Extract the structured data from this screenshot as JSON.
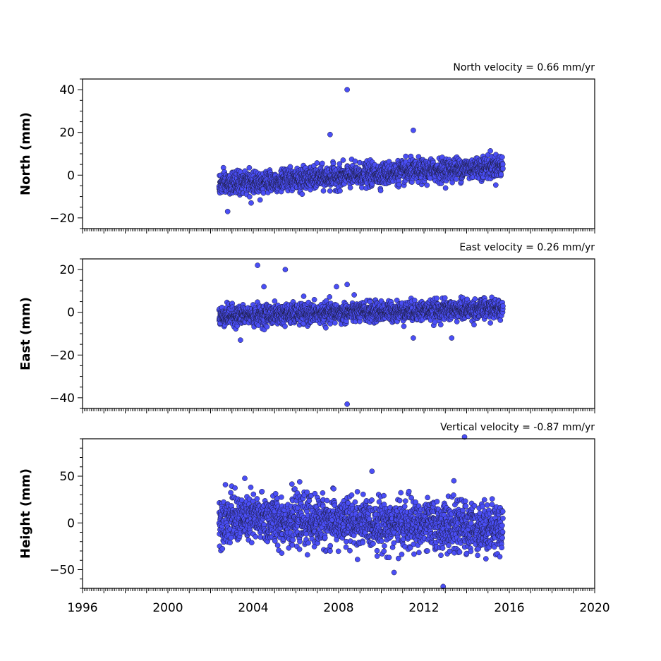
{
  "chart_data": [
    {
      "type": "scatter",
      "ylabel": "North (mm)",
      "annotation": "North velocity = 0.66 mm/yr",
      "velocity_mm_per_yr": 0.66,
      "ylim": [
        -25,
        45
      ],
      "yticks": [
        -20,
        0,
        20,
        40
      ],
      "ytick_labels": [
        "−20",
        "0",
        "20",
        "40"
      ],
      "xlim": [
        1996,
        2020
      ],
      "time_span": [
        2002.4,
        2015.7
      ],
      "scatter_sigma_mm": 2.6,
      "series_color": "#4a4ef5",
      "outliers": [
        {
          "x": 2002.8,
          "y": -17
        },
        {
          "x": 2003.9,
          "y": -13
        },
        {
          "x": 2007.6,
          "y": 19
        },
        {
          "x": 2008.4,
          "y": 40
        },
        {
          "x": 2011.5,
          "y": 21
        }
      ]
    },
    {
      "type": "scatter",
      "ylabel": "East (mm)",
      "annotation": "East velocity = 0.26 mm/yr",
      "velocity_mm_per_yr": 0.26,
      "ylim": [
        -45,
        25
      ],
      "yticks": [
        -40,
        -20,
        0,
        20
      ],
      "ytick_labels": [
        "−40",
        "−20",
        "0",
        "20"
      ],
      "xlim": [
        1996,
        2020
      ],
      "time_span": [
        2002.4,
        2015.7
      ],
      "scatter_sigma_mm": 2.3,
      "series_color": "#4a4ef5",
      "outliers": [
        {
          "x": 2003.4,
          "y": -13
        },
        {
          "x": 2004.2,
          "y": 22
        },
        {
          "x": 2004.5,
          "y": 12
        },
        {
          "x": 2005.5,
          "y": 20
        },
        {
          "x": 2007.9,
          "y": 12
        },
        {
          "x": 2008.4,
          "y": 13
        },
        {
          "x": 2008.4,
          "y": -43
        },
        {
          "x": 2011.5,
          "y": -12
        },
        {
          "x": 2013.3,
          "y": -12
        }
      ]
    },
    {
      "type": "scatter",
      "ylabel": "Height (mm)",
      "annotation": "Vertical velocity = -0.87 mm/yr",
      "velocity_mm_per_yr": -0.87,
      "ylim": [
        -70,
        90
      ],
      "yticks": [
        -50,
        0,
        50
      ],
      "ytick_labels": [
        "−50",
        "0",
        "50"
      ],
      "xlim": [
        1996,
        2020
      ],
      "xticks": [
        1996,
        2000,
        2004,
        2008,
        2012,
        2016,
        2020
      ],
      "xtick_labels": [
        "1996",
        "2000",
        "2004",
        "2008",
        "2012",
        "2016",
        "2020"
      ],
      "time_span": [
        2002.4,
        2015.7
      ],
      "scatter_sigma_mm": 13,
      "series_color": "#4a4ef5",
      "outliers": [
        {
          "x": 2010.6,
          "y": -53
        },
        {
          "x": 2012.9,
          "y": -68
        },
        {
          "x": 2013.4,
          "y": 45
        },
        {
          "x": 2013.9,
          "y": 92
        }
      ]
    }
  ]
}
